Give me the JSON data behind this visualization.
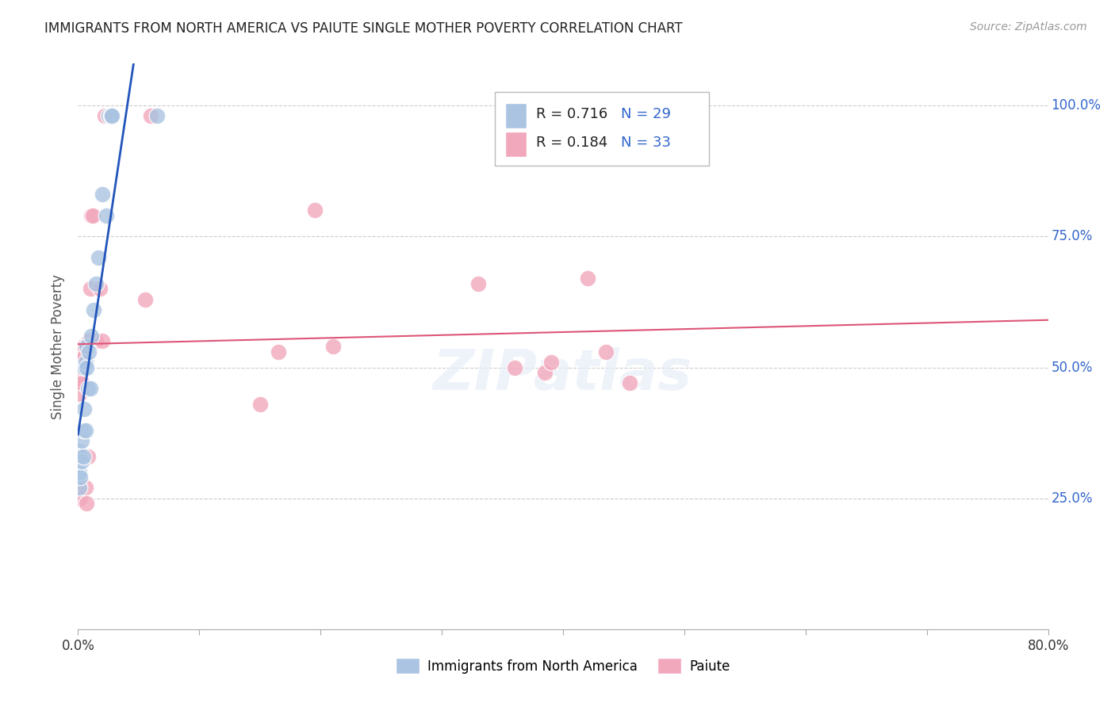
{
  "title": "IMMIGRANTS FROM NORTH AMERICA VS PAIUTE SINGLE MOTHER POVERTY CORRELATION CHART",
  "source": "Source: ZipAtlas.com",
  "ylabel": "Single Mother Poverty",
  "legend_label1": "Immigrants from North America",
  "legend_label2": "Paiute",
  "R1": "0.716",
  "N1": "29",
  "R2": "0.184",
  "N2": "33",
  "color_blue": "#aac4e2",
  "color_pink": "#f2a8bc",
  "line_blue": "#2255bb",
  "line_pink": "#dd5577",
  "color_blue_text": "#3366cc",
  "title_color": "#222222",
  "source_color": "#999999",
  "background_color": "#ffffff",
  "grid_color": "#cccccc",
  "blue_points_x": [
    0.001,
    0.001,
    0.001,
    0.002,
    0.002,
    0.003,
    0.003,
    0.004,
    0.004,
    0.005,
    0.005,
    0.006,
    0.006,
    0.007,
    0.007,
    0.008,
    0.009,
    0.01,
    0.011,
    0.013,
    0.015,
    0.017,
    0.02,
    0.023,
    0.025,
    0.027,
    0.027,
    0.028,
    0.065
  ],
  "blue_points_y": [
    0.27,
    0.3,
    0.34,
    0.29,
    0.33,
    0.32,
    0.36,
    0.33,
    0.38,
    0.42,
    0.5,
    0.38,
    0.51,
    0.5,
    0.54,
    0.46,
    0.53,
    0.46,
    0.56,
    0.61,
    0.66,
    0.71,
    0.83,
    0.79,
    0.98,
    0.98,
    0.98,
    0.98,
    0.98
  ],
  "pink_points_x": [
    0.001,
    0.001,
    0.002,
    0.002,
    0.003,
    0.003,
    0.004,
    0.005,
    0.005,
    0.006,
    0.007,
    0.008,
    0.009,
    0.01,
    0.011,
    0.012,
    0.015,
    0.018,
    0.02,
    0.022,
    0.055,
    0.06,
    0.15,
    0.165,
    0.195,
    0.21,
    0.33,
    0.36,
    0.385,
    0.39,
    0.42,
    0.435,
    0.455
  ],
  "pink_points_y": [
    0.45,
    0.48,
    0.25,
    0.33,
    0.47,
    0.53,
    0.52,
    0.54,
    0.52,
    0.27,
    0.24,
    0.33,
    0.55,
    0.65,
    0.79,
    0.79,
    0.55,
    0.65,
    0.55,
    0.98,
    0.63,
    0.98,
    0.43,
    0.53,
    0.8,
    0.54,
    0.66,
    0.5,
    0.49,
    0.51,
    0.67,
    0.53,
    0.47
  ],
  "xlim": [
    0.0,
    0.8
  ],
  "ylim": [
    0.0,
    1.08
  ],
  "ytick_values": [
    0.25,
    0.5,
    0.75,
    1.0
  ],
  "ytick_labels": [
    "25.0%",
    "50.0%",
    "75.0%",
    "100.0%"
  ],
  "xtick_values": [
    0.0,
    0.1,
    0.2,
    0.3,
    0.4,
    0.5,
    0.6,
    0.7,
    0.8
  ]
}
